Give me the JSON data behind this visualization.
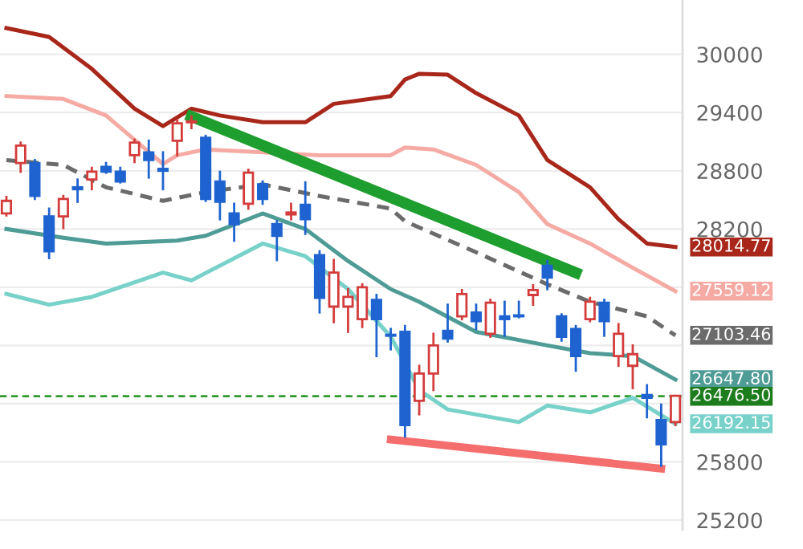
{
  "chart_data": {
    "type": "candlestick",
    "categories": [
      null,
      null,
      null,
      null,
      null,
      null,
      null,
      null,
      null,
      null,
      null,
      null,
      null,
      null,
      null,
      null,
      null,
      null,
      null,
      null,
      null,
      null,
      null,
      null,
      null,
      null,
      null,
      null,
      null,
      null,
      null,
      null,
      null,
      null,
      null,
      null,
      null,
      null,
      null,
      null,
      null,
      null,
      null,
      null,
      null,
      null,
      null,
      null
    ],
    "ohlc": [
      [
        28360,
        28530,
        28340,
        28490
      ],
      [
        28880,
        29090,
        28790,
        29060
      ],
      [
        28880,
        28910,
        28510,
        28540
      ],
      [
        28330,
        28410,
        27900,
        27970
      ],
      [
        28330,
        28540,
        28210,
        28510
      ],
      [
        28630,
        28710,
        28480,
        28610
      ],
      [
        28710,
        28830,
        28610,
        28790
      ],
      [
        28840,
        28880,
        28780,
        28790
      ],
      [
        28790,
        28830,
        28680,
        28690
      ],
      [
        28960,
        29120,
        28890,
        29090
      ],
      [
        28990,
        29110,
        28730,
        28910
      ],
      [
        28820,
        28990,
        28610,
        28800
      ],
      [
        29110,
        29320,
        28960,
        29290
      ],
      [
        29300,
        29360,
        29240,
        29310
      ],
      [
        29140,
        29160,
        28490,
        28510
      ],
      [
        28690,
        28790,
        28300,
        28480
      ],
      [
        28360,
        28460,
        28080,
        28250
      ],
      [
        28460,
        28810,
        28410,
        28780
      ],
      [
        28660,
        28690,
        28460,
        28510
      ],
      [
        28250,
        28280,
        27880,
        28130
      ],
      [
        28350,
        28460,
        28300,
        28370
      ],
      [
        28450,
        28680,
        28150,
        28300
      ],
      [
        27930,
        27970,
        27340,
        27490
      ],
      [
        27400,
        27880,
        27240,
        27750
      ],
      [
        27400,
        27580,
        27140,
        27500
      ],
      [
        27270,
        27630,
        27190,
        27600
      ],
      [
        27470,
        27520,
        26890,
        27270
      ],
      [
        27110,
        27170,
        26960,
        27100
      ],
      [
        27140,
        27200,
        26060,
        26180
      ],
      [
        26430,
        26790,
        26290,
        26710
      ],
      [
        26710,
        27120,
        26540,
        27000
      ],
      [
        27150,
        27420,
        27040,
        27070
      ],
      [
        27300,
        27570,
        27270,
        27530
      ],
      [
        27340,
        27420,
        27170,
        27250
      ],
      [
        27120,
        27470,
        27090,
        27440
      ],
      [
        27300,
        27450,
        27100,
        27270
      ],
      [
        27310,
        27450,
        27290,
        27300
      ],
      [
        27520,
        27620,
        27420,
        27570
      ],
      [
        27820,
        27870,
        27580,
        27700
      ],
      [
        27300,
        27320,
        27050,
        27090
      ],
      [
        27170,
        27200,
        26740,
        26890
      ],
      [
        27270,
        27490,
        27250,
        27450
      ],
      [
        27440,
        27470,
        27100,
        27250
      ],
      [
        26890,
        27220,
        26790,
        27120
      ],
      [
        26790,
        27000,
        26560,
        26910
      ],
      [
        26490,
        26590,
        26260,
        26460
      ],
      [
        26230,
        26390,
        25760,
        25980
      ],
      [
        26210,
        26480,
        26180,
        26480
      ]
    ],
    "colors": [
      "#d43c3c",
      "#d43c3c",
      "#1e63cf",
      "#1e63cf",
      "#d43c3c",
      "#1e63cf",
      "#d43c3c",
      "#1e63cf",
      "#1e63cf",
      "#d43c3c",
      "#1e63cf",
      "#1e63cf",
      "#d43c3c",
      "#d43c3c",
      "#1e63cf",
      "#1e63cf",
      "#1e63cf",
      "#d43c3c",
      "#1e63cf",
      "#1e63cf",
      "#d43c3c",
      "#1e63cf",
      "#1e63cf",
      "#d43c3c",
      "#d43c3c",
      "#d43c3c",
      "#1e63cf",
      "#1e63cf",
      "#1e63cf",
      "#d43c3c",
      "#d43c3c",
      "#1e63cf",
      "#d43c3c",
      "#1e63cf",
      "#d43c3c",
      "#1e63cf",
      "#1e63cf",
      "#d43c3c",
      "#1e63cf",
      "#1e63cf",
      "#1e63cf",
      "#d43c3c",
      "#1e63cf",
      "#d43c3c",
      "#d43c3c",
      "#1e63cf",
      "#1e63cf",
      "#d43c3c"
    ],
    "series": [
      {
        "type": "line",
        "color": "#a8271a",
        "values": [
          30270,
          null,
          null,
          30180,
          null,
          null,
          29850,
          null,
          null,
          29440,
          null,
          29260,
          null,
          29440,
          null,
          29370,
          null,
          null,
          29300,
          null,
          null,
          29300,
          null,
          29490,
          null,
          null,
          null,
          29570,
          29740,
          29800,
          null,
          29790,
          null,
          29600,
          null,
          null,
          29370,
          null,
          28910,
          null,
          null,
          28630,
          null,
          28300,
          null,
          28050,
          null,
          28014.77
        ],
        "value_labels": [
          null,
          null,
          null,
          null,
          null,
          null,
          null,
          null,
          null,
          null,
          null,
          null,
          null,
          null,
          null,
          null,
          null,
          null,
          null,
          null,
          null,
          null,
          null,
          null,
          null,
          null,
          null,
          null,
          null,
          null,
          null,
          null,
          null,
          null,
          null,
          null,
          null,
          null,
          null,
          null,
          null,
          null,
          null,
          null,
          null,
          null,
          null,
          "28014.77"
        ]
      },
      {
        "type": "line",
        "color": "#f5aaa4",
        "values": [
          29570,
          null,
          null,
          null,
          29540,
          null,
          null,
          29370,
          null,
          null,
          null,
          28870,
          28960,
          null,
          29020,
          null,
          null,
          null,
          28990,
          null,
          null,
          null,
          28960,
          null,
          null,
          null,
          null,
          28960,
          29040,
          null,
          29020,
          null,
          null,
          28860,
          null,
          null,
          28580,
          null,
          28250,
          null,
          null,
          28050,
          null,
          null,
          27800,
          null,
          null,
          27559.12
        ],
        "value_labels": [
          null,
          null,
          null,
          null,
          null,
          null,
          null,
          null,
          null,
          null,
          null,
          null,
          null,
          null,
          null,
          null,
          null,
          null,
          null,
          null,
          null,
          null,
          null,
          null,
          null,
          null,
          null,
          null,
          null,
          null,
          null,
          null,
          null,
          null,
          null,
          null,
          null,
          null,
          null,
          null,
          null,
          null,
          null,
          null,
          null,
          null,
          null,
          "27559.12"
        ]
      },
      {
        "type": "line",
        "color": "#6b6b6b",
        "line_style": "dashed",
        "values": [
          28910,
          null,
          null,
          null,
          28860,
          null,
          null,
          28630,
          null,
          null,
          null,
          28490,
          null,
          null,
          28580,
          null,
          null,
          null,
          28660,
          null,
          null,
          null,
          28540,
          null,
          null,
          null,
          null,
          28410,
          28280,
          null,
          null,
          null,
          null,
          27960,
          null,
          null,
          null,
          null,
          27630,
          null,
          null,
          27450,
          null,
          null,
          null,
          27300,
          null,
          27103.46
        ],
        "value_labels": [
          null,
          null,
          null,
          null,
          null,
          null,
          null,
          null,
          null,
          null,
          null,
          null,
          null,
          null,
          null,
          null,
          null,
          null,
          null,
          null,
          null,
          null,
          null,
          null,
          null,
          null,
          null,
          null,
          null,
          null,
          null,
          null,
          null,
          null,
          null,
          null,
          null,
          null,
          null,
          null,
          null,
          null,
          null,
          null,
          null,
          null,
          null,
          "27103.46"
        ]
      },
      {
        "type": "line",
        "color": "#4f9c96",
        "values": [
          28200,
          null,
          null,
          null,
          28110,
          null,
          null,
          28050,
          null,
          null,
          null,
          null,
          28080,
          null,
          28130,
          null,
          null,
          null,
          28360,
          null,
          null,
          28200,
          null,
          null,
          27870,
          null,
          null,
          27580,
          null,
          27450,
          null,
          null,
          null,
          27140,
          null,
          null,
          null,
          null,
          27000,
          null,
          null,
          26920,
          null,
          null,
          26890,
          null,
          null,
          26647.8
        ],
        "value_labels": [
          null,
          null,
          null,
          null,
          null,
          null,
          null,
          null,
          null,
          null,
          null,
          null,
          null,
          null,
          null,
          null,
          null,
          null,
          null,
          null,
          null,
          null,
          null,
          null,
          null,
          null,
          null,
          null,
          null,
          null,
          null,
          null,
          null,
          null,
          null,
          null,
          null,
          null,
          null,
          null,
          null,
          null,
          null,
          null,
          null,
          null,
          null,
          "26647.80"
        ]
      },
      {
        "type": "line",
        "color": "#78d2ca",
        "values": [
          27530,
          null,
          null,
          27420,
          null,
          null,
          27500,
          null,
          null,
          null,
          null,
          27750,
          null,
          27670,
          null,
          null,
          null,
          null,
          28050,
          null,
          null,
          27920,
          null,
          null,
          27580,
          null,
          null,
          27090,
          null,
          26540,
          null,
          26340,
          null,
          null,
          null,
          null,
          26210,
          null,
          26380,
          null,
          null,
          26310,
          null,
          null,
          26460,
          null,
          null,
          26192.15
        ],
        "value_labels": [
          null,
          null,
          null,
          null,
          null,
          null,
          null,
          null,
          null,
          null,
          null,
          null,
          null,
          null,
          null,
          null,
          null,
          null,
          null,
          null,
          null,
          null,
          null,
          null,
          null,
          null,
          null,
          null,
          null,
          null,
          null,
          null,
          null,
          null,
          null,
          null,
          null,
          null,
          null,
          null,
          null,
          null,
          null,
          null,
          null,
          null,
          null,
          "26192.15"
        ]
      },
      {
        "type": "line",
        "color": "#1e9e2e",
        "values": [
          null,
          null,
          null,
          null,
          null,
          null,
          null,
          null,
          null,
          null,
          null,
          null,
          null,
          29360,
          null,
          null,
          null,
          null,
          null,
          null,
          null,
          null,
          null,
          null,
          null,
          null,
          null,
          null,
          null,
          null,
          null,
          null,
          null,
          null,
          null,
          null,
          null,
          null,
          null,
          null,
          27750,
          null,
          null,
          null,
          null,
          null,
          null,
          null
        ]
      },
      {
        "type": "line",
        "color": "#f46e6e",
        "values": [
          null,
          null,
          null,
          null,
          null,
          null,
          null,
          null,
          null,
          null,
          null,
          null,
          null,
          null,
          null,
          null,
          null,
          null,
          null,
          null,
          null,
          null,
          null,
          null,
          null,
          null,
          null,
          26030,
          null,
          null,
          null,
          null,
          null,
          null,
          null,
          null,
          null,
          null,
          null,
          null,
          null,
          null,
          null,
          null,
          null,
          null,
          25730,
          null
        ]
      }
    ],
    "ref_lines": [
      {
        "axis": "y",
        "value": 26476.5,
        "label": "26476.50",
        "color": "#2f9a2f",
        "line_style": "dashed"
      }
    ],
    "ylim": [
      25100,
      30560
    ],
    "yticks": [
      25200,
      25800,
      {
        "value": 26400,
        "label": null
      },
      {
        "value": 27000,
        "label": null
      },
      {
        "value": 27600,
        "label": null
      },
      28200,
      28800,
      29400,
      30000
    ],
    "grid": "y",
    "legend": false,
    "tick_labels": "y"
  }
}
